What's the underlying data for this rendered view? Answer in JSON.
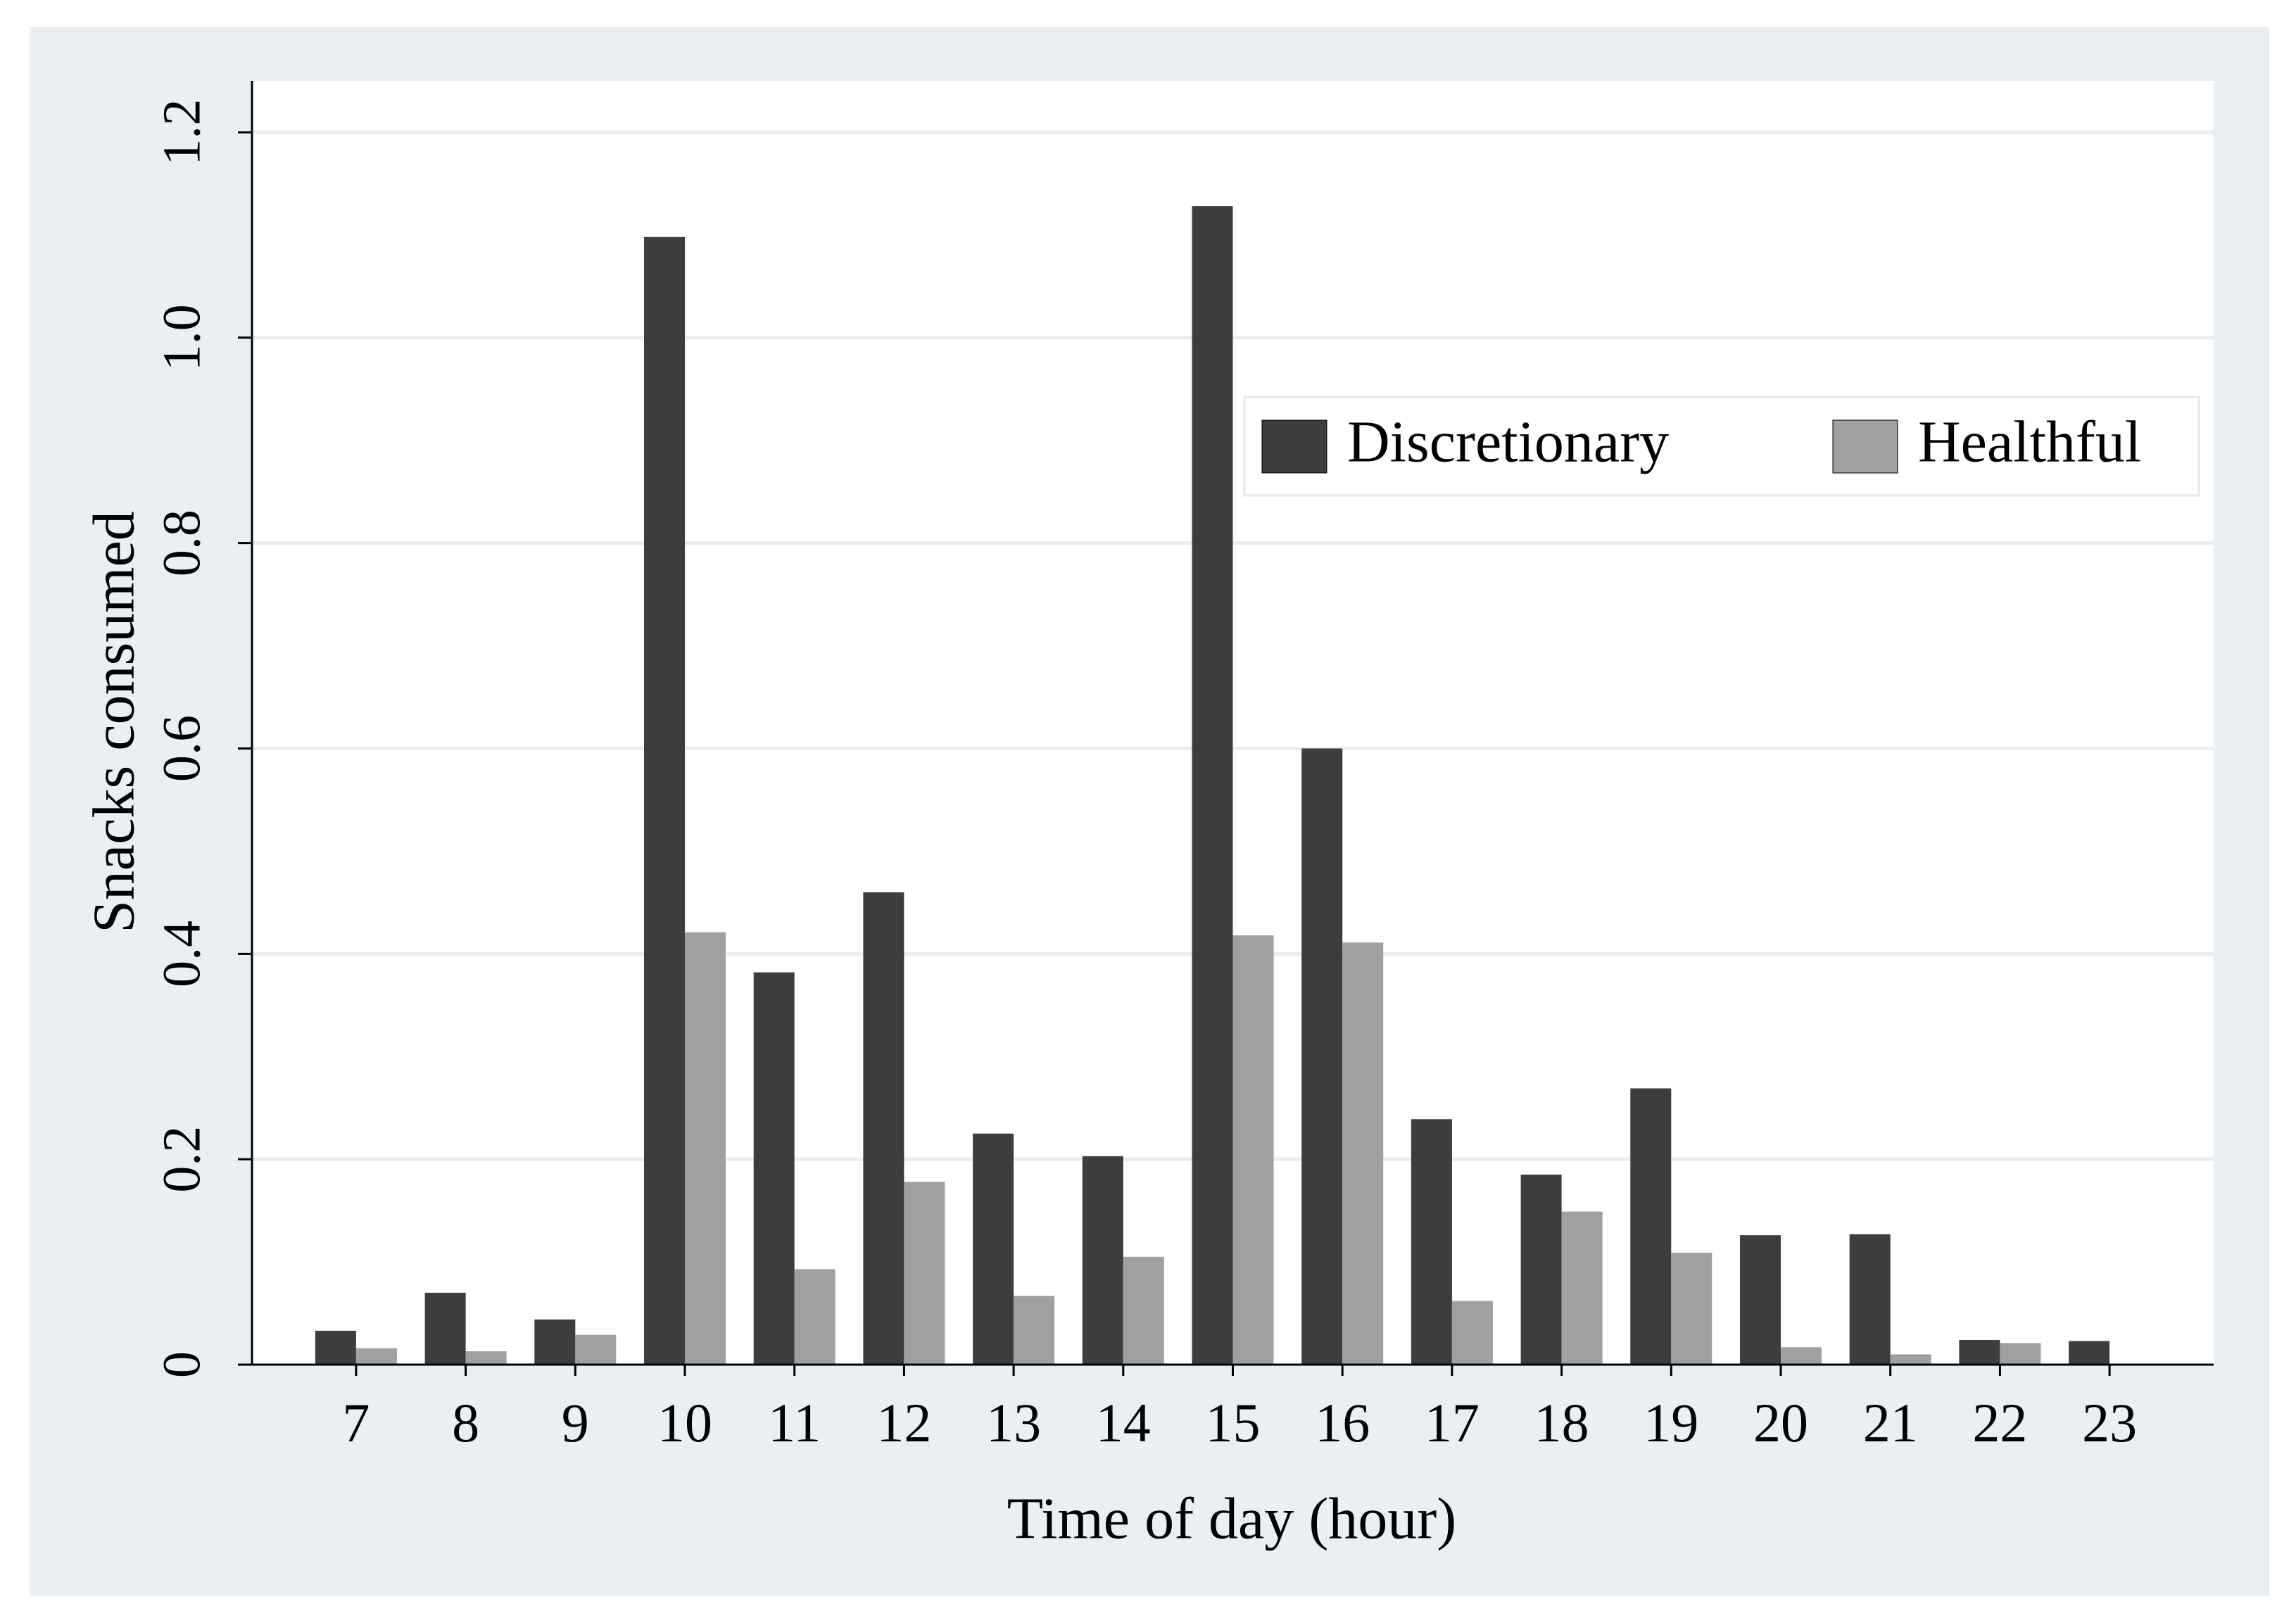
{
  "chart_data": {
    "type": "bar",
    "x_label": "Time of day (hour)",
    "y_label": "Snacks consumed",
    "categories": [
      "7",
      "8",
      "9",
      "10",
      "11",
      "12",
      "13",
      "14",
      "15",
      "16",
      "17",
      "18",
      "19",
      "20",
      "21",
      "22",
      "23"
    ],
    "series": [
      {
        "name": "Discretionary",
        "color": "#3d3d3d",
        "values": [
          0.033,
          0.07,
          0.044,
          1.098,
          0.382,
          0.46,
          0.225,
          0.203,
          1.128,
          0.6,
          0.239,
          0.185,
          0.269,
          0.126,
          0.127,
          0.024,
          0.023
        ]
      },
      {
        "name": "Healthful",
        "color": "#a0a0a0",
        "values": [
          0.016,
          0.013,
          0.029,
          0.421,
          0.093,
          0.178,
          0.067,
          0.105,
          0.418,
          0.411,
          0.062,
          0.149,
          0.109,
          0.017,
          0.01,
          0.021,
          0
        ]
      }
    ],
    "ylim": [
      0,
      1.25
    ],
    "yticks": [
      0,
      0.2,
      0.4,
      0.6,
      0.8,
      {
        "value": 1,
        "label": "1.0"
      },
      1.2
    ],
    "grid": true,
    "legend": "upper right"
  }
}
